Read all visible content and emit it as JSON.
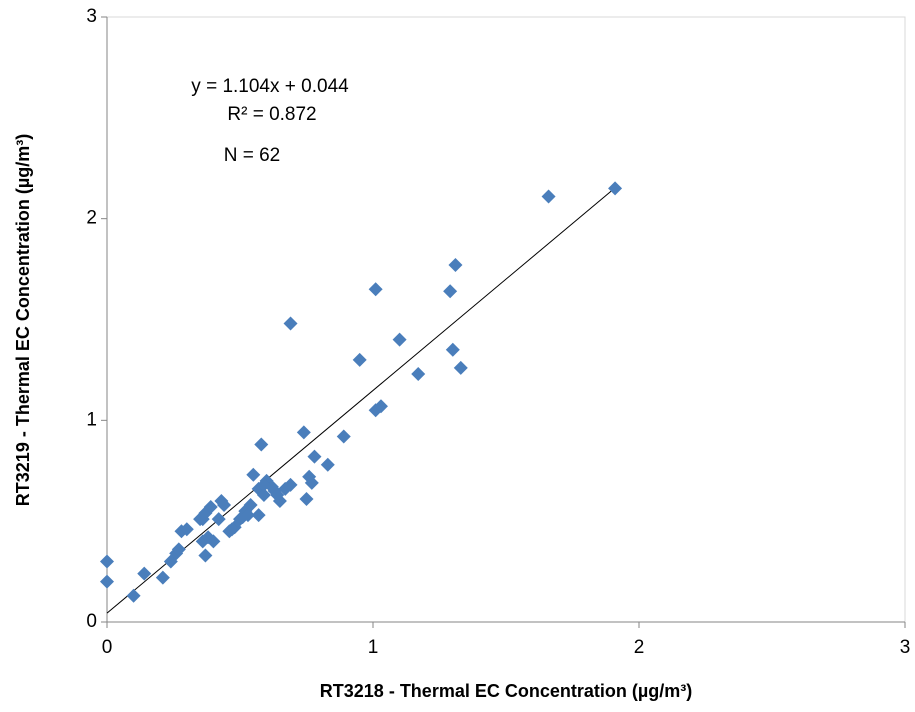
{
  "chart_data": {
    "type": "scatter",
    "x_label": "RT3218 - Thermal EC Concentration (µg/m³)",
    "y_label": "RT3219 - Thermal EC Concentration (µg/m³)",
    "annotations": [
      "y = 1.104x + 0.044",
      "R² = 0.872",
      "N = 62"
    ],
    "xlim": [
      0,
      3
    ],
    "ylim": [
      0,
      3
    ],
    "xticks": [
      0,
      1,
      2,
      3
    ],
    "yticks": [
      0,
      1,
      2,
      3
    ],
    "trendline": {
      "slope": 1.104,
      "intercept": 0.044,
      "xrange": [
        0,
        1.91
      ],
      "color": "#000000"
    },
    "series": [
      {
        "color": "#4a7ebb",
        "x": [
          0,
          0,
          0.1,
          0.14,
          0.21,
          0.24,
          0.26,
          0.27,
          0.28,
          0.3,
          0.36,
          0.37,
          0.36,
          0.37,
          0.39,
          0.4,
          0.42,
          0.43,
          0.44,
          0.46,
          0.48,
          0.51,
          0.52,
          0.54,
          0.55,
          0.57,
          0.57,
          0.58,
          0.59,
          0.6,
          0.62,
          0.63,
          0.65,
          0.67,
          0.69,
          0.69,
          0.74,
          0.75,
          0.76,
          0.77,
          0.78,
          0.83,
          0.89,
          0.95,
          1.01,
          1.01,
          1.03,
          1.1,
          1.17,
          1.29,
          1.3,
          1.31,
          1.33,
          1.66,
          1.91,
          0.35,
          0.47,
          0.53,
          0.59,
          0.64,
          0.38,
          0.5
        ],
        "values": [
          0.3,
          0.2,
          0.13,
          0.24,
          0.22,
          0.3,
          0.34,
          0.36,
          0.45,
          0.46,
          0.4,
          0.33,
          0.51,
          0.54,
          0.57,
          0.4,
          0.51,
          0.6,
          0.58,
          0.45,
          0.47,
          0.52,
          0.55,
          0.58,
          0.73,
          0.53,
          0.66,
          0.88,
          0.63,
          0.7,
          0.67,
          0.65,
          0.6,
          0.66,
          0.68,
          1.48,
          0.94,
          0.61,
          0.72,
          0.69,
          0.82,
          0.78,
          0.92,
          1.3,
          1.05,
          1.65,
          1.07,
          1.4,
          1.23,
          1.64,
          1.35,
          1.77,
          1.26,
          2.11,
          2.15,
          0.51,
          0.46,
          0.53,
          0.68,
          0.63,
          0.42,
          0.51
        ]
      }
    ]
  }
}
